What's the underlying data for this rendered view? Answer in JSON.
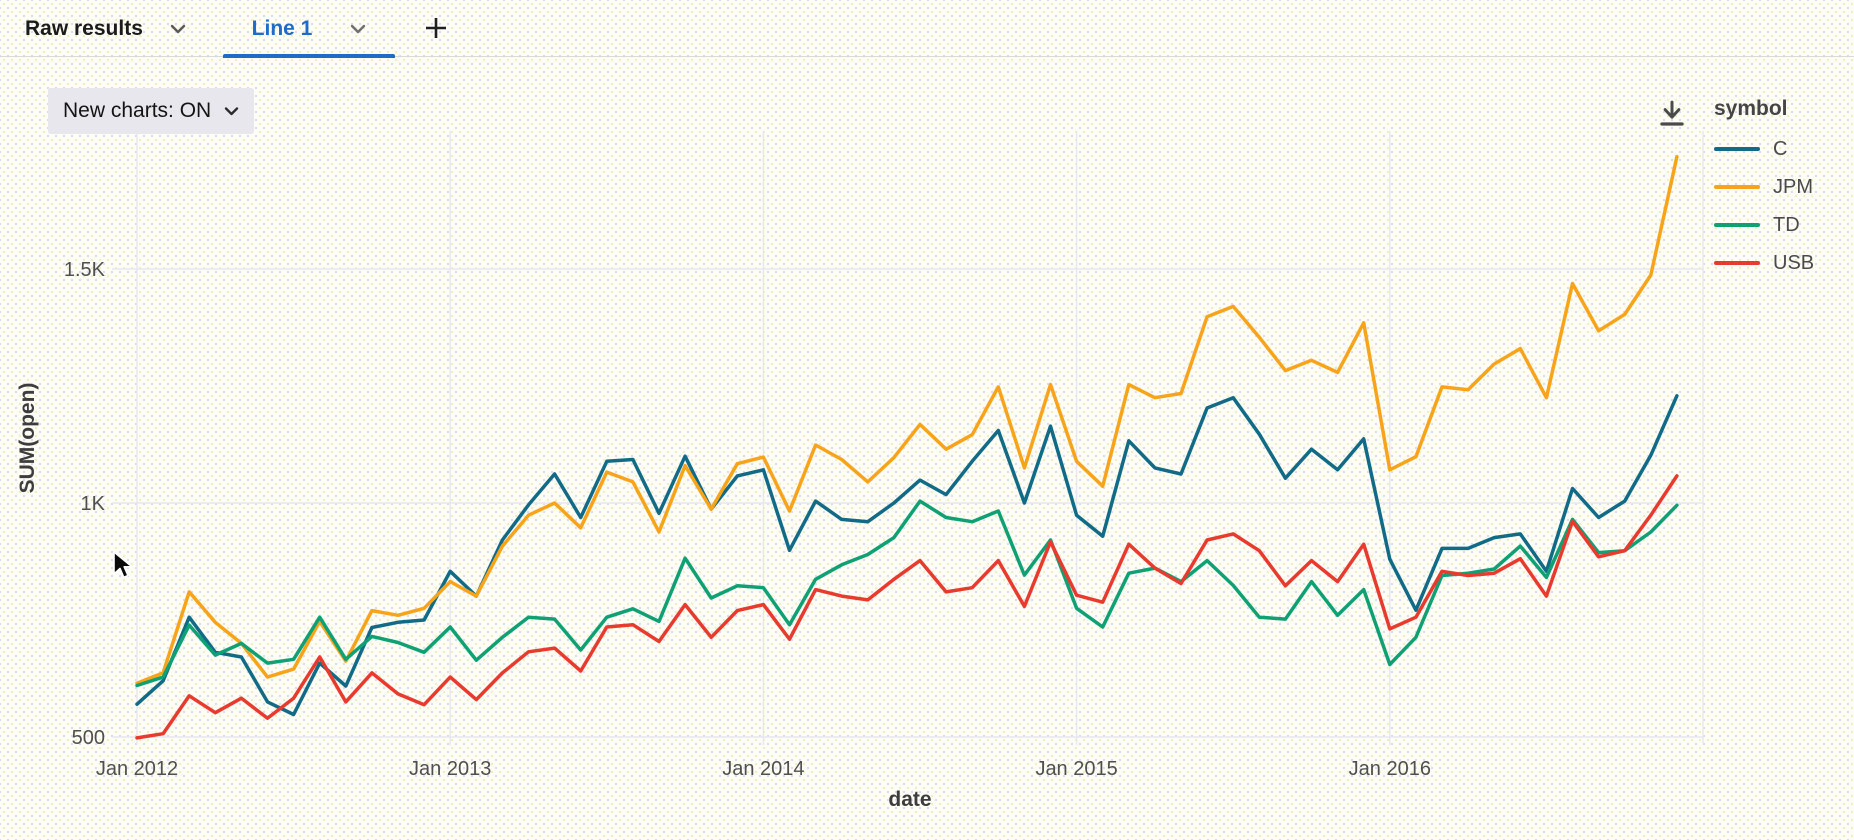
{
  "header": {
    "tabs": [
      {
        "label": "Raw results",
        "active": false
      },
      {
        "label": "Line 1",
        "active": true
      }
    ]
  },
  "controls": {
    "new_charts_label": "New charts: ON",
    "accent_color": "#1E6CC7"
  },
  "legend": {
    "title": "symbol"
  },
  "chart_data": {
    "type": "line",
    "title": "",
    "xlabel": "date",
    "ylabel": "SUM(open)",
    "x_tick_labels": [
      "Jan 2012",
      "Jan 2013",
      "Jan 2014",
      "Jan 2015",
      "Jan 2016"
    ],
    "y_ticks": [
      {
        "label": "500",
        "value": 500
      },
      {
        "label": "1K",
        "value": 1000
      },
      {
        "label": "1.5K",
        "value": 1500
      }
    ],
    "ylim": [
      450,
      1800
    ],
    "grid": true,
    "legend_position": "right",
    "x": [
      "2012-01",
      "2012-02",
      "2012-03",
      "2012-04",
      "2012-05",
      "2012-06",
      "2012-07",
      "2012-08",
      "2012-09",
      "2012-10",
      "2012-11",
      "2012-12",
      "2013-01",
      "2013-02",
      "2013-03",
      "2013-04",
      "2013-05",
      "2013-06",
      "2013-07",
      "2013-08",
      "2013-09",
      "2013-10",
      "2013-11",
      "2013-12",
      "2014-01",
      "2014-02",
      "2014-03",
      "2014-04",
      "2014-05",
      "2014-06",
      "2014-07",
      "2014-08",
      "2014-09",
      "2014-10",
      "2014-11",
      "2014-12",
      "2015-01",
      "2015-02",
      "2015-03",
      "2015-04",
      "2015-05",
      "2015-06",
      "2015-07",
      "2015-08",
      "2015-09",
      "2015-10",
      "2015-11",
      "2015-12",
      "2016-01",
      "2016-02",
      "2016-03",
      "2016-04",
      "2016-05",
      "2016-06",
      "2016-07",
      "2016-08",
      "2016-09",
      "2016-10",
      "2016-11",
      "2016-12"
    ],
    "series": [
      {
        "name": "C",
        "color": "#116B87",
        "values": [
          570,
          620,
          756,
          681,
          671,
          575,
          548,
          658,
          609,
          734,
          745,
          750,
          854,
          801,
          921,
          996,
          1062,
          969,
          1089,
          1093,
          978,
          1100,
          987,
          1058,
          1071,
          899,
          1004,
          965,
          960,
          1000,
          1049,
          1018,
          1089,
          1155,
          1000,
          1164,
          974,
          929,
          1133,
          1075,
          1062,
          1203,
          1225,
          1147,
          1053,
          1115,
          1071,
          1137,
          880,
          771,
          903,
          903,
          926,
          934,
          854,
          1031,
          969,
          1004,
          1102,
          1229
        ]
      },
      {
        "name": "JPM",
        "color": "#F8A41B",
        "values": [
          615,
          637,
          810,
          745,
          700,
          628,
          645,
          747,
          662,
          770,
          760,
          775,
          832,
          801,
          908,
          974,
          1000,
          947,
          1066,
          1045,
          938,
          1080,
          987,
          1084,
          1098,
          983,
          1124,
          1093,
          1045,
          1097,
          1168,
          1115,
          1146,
          1248,
          1075,
          1253,
          1089,
          1036,
          1253,
          1225,
          1234,
          1398,
          1420,
          1354,
          1283,
          1305,
          1279,
          1385,
          1071,
          1099,
          1248,
          1242,
          1297,
          1330,
          1225,
          1469,
          1368,
          1403,
          1487,
          1740
        ]
      },
      {
        "name": "TD",
        "color": "#0FA173",
        "values": [
          610,
          628,
          739,
          675,
          700,
          658,
          666,
          756,
          666,
          715,
          702,
          681,
          735,
          664,
          713,
          756,
          752,
          686,
          756,
          774,
          747,
          882,
          797,
          823,
          819,
          740,
          837,
          868,
          890,
          926,
          1004,
          969,
          960,
          983,
          846,
          921,
          775,
          735,
          850,
          861,
          832,
          877,
          824,
          756,
          752,
          832,
          760,
          815,
          655,
          713,
          845,
          850,
          859,
          908,
          841,
          965,
          894,
          898,
          938,
          995
        ]
      },
      {
        "name": "USB",
        "color": "#E93A2E",
        "values": [
          498,
          507,
          588,
          552,
          583,
          540,
          583,
          671,
          575,
          637,
          592,
          569,
          628,
          580,
          637,
          682,
          690,
          641,
          735,
          740,
          704,
          783,
          713,
          770,
          783,
          709,
          815,
          801,
          793,
          837,
          877,
          810,
          819,
          877,
          779,
          917,
          803,
          788,
          912,
          861,
          828,
          921,
          934,
          898,
          823,
          877,
          832,
          912,
          731,
          756,
          854,
          845,
          850,
          881,
          801,
          961,
          885,
          898,
          974,
          1058
        ]
      }
    ]
  }
}
